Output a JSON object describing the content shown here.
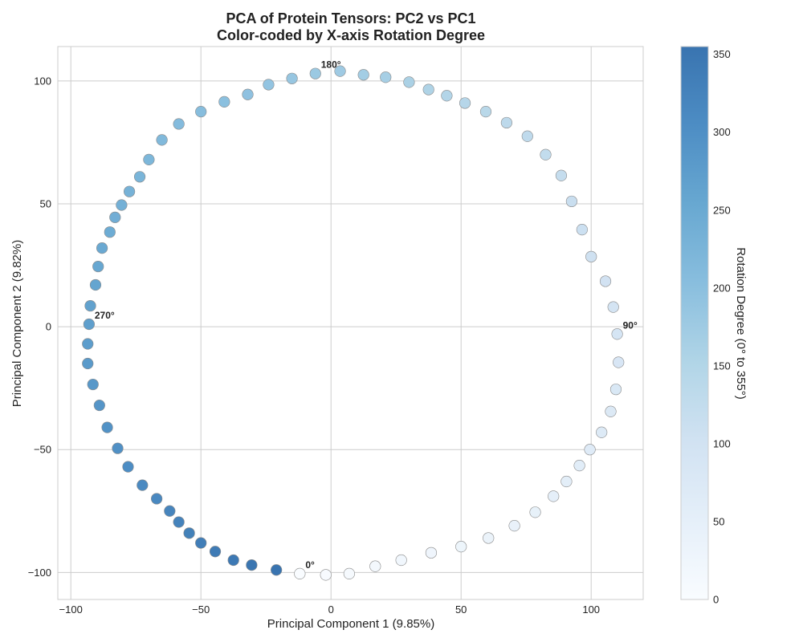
{
  "chart_data": {
    "type": "scatter",
    "title": "PCA of Protein Tensors: PC2 vs PC1",
    "subtitle": "Color-coded by X-axis Rotation Degree",
    "xlabel": "Principal Component 1 (9.85%)",
    "ylabel": "Principal Component 2 (9.82%)",
    "xlim": [
      -105,
      120
    ],
    "ylim": [
      -111,
      114
    ],
    "xticks": [
      -100,
      -50,
      0,
      50,
      100
    ],
    "yticks": [
      -100,
      -50,
      0,
      50,
      100
    ],
    "xtick_labels": [
      "−100",
      "−50",
      "0",
      "50",
      "100"
    ],
    "ytick_labels": [
      "−100",
      "−50",
      "0",
      "50",
      "100"
    ],
    "grid": true,
    "colorbar": {
      "label": "Rotation Degree (0° to 355°)",
      "range": [
        0,
        355
      ],
      "ticks": [
        0,
        50,
        100,
        150,
        200,
        250,
        300,
        350
      ],
      "tick_labels": [
        "0",
        "50",
        "100",
        "150",
        "200",
        "250",
        "300",
        "350"
      ],
      "colormap": "Blues",
      "colors": [
        "#f7fbff",
        "#deebf7",
        "#c6dbef",
        "#9ecae1",
        "#6baed6",
        "#4292c6",
        "#2171b5",
        "#08519c"
      ]
    },
    "points": [
      {
        "deg": 0,
        "x": -12,
        "y": -100.5
      },
      {
        "deg": 5,
        "x": -2,
        "y": -101
      },
      {
        "deg": 10,
        "x": 7,
        "y": -100.5
      },
      {
        "deg": 15,
        "x": 17,
        "y": -97.5
      },
      {
        "deg": 20,
        "x": 27,
        "y": -95
      },
      {
        "deg": 25,
        "x": 38.5,
        "y": -92
      },
      {
        "deg": 30,
        "x": 50,
        "y": -89.5
      },
      {
        "deg": 35,
        "x": 60.5,
        "y": -86
      },
      {
        "deg": 40,
        "x": 70.5,
        "y": -81
      },
      {
        "deg": 45,
        "x": 78.5,
        "y": -75.5
      },
      {
        "deg": 50,
        "x": 85.5,
        "y": -69
      },
      {
        "deg": 55,
        "x": 90.5,
        "y": -63
      },
      {
        "deg": 60,
        "x": 95.5,
        "y": -56.5
      },
      {
        "deg": 65,
        "x": 99.5,
        "y": -50
      },
      {
        "deg": 70,
        "x": 104,
        "y": -43
      },
      {
        "deg": 75,
        "x": 107.5,
        "y": -34.5
      },
      {
        "deg": 80,
        "x": 109.5,
        "y": -25.5
      },
      {
        "deg": 85,
        "x": 110.5,
        "y": -14.5
      },
      {
        "deg": 90,
        "x": 110,
        "y": -3
      },
      {
        "deg": 95,
        "x": 108.5,
        "y": 8
      },
      {
        "deg": 100,
        "x": 105.5,
        "y": 18.5
      },
      {
        "deg": 105,
        "x": 100,
        "y": 28.5
      },
      {
        "deg": 110,
        "x": 96.5,
        "y": 39.5
      },
      {
        "deg": 115,
        "x": 92.5,
        "y": 51
      },
      {
        "deg": 120,
        "x": 88.5,
        "y": 61.5
      },
      {
        "deg": 125,
        "x": 82.5,
        "y": 70
      },
      {
        "deg": 130,
        "x": 75.5,
        "y": 77.5
      },
      {
        "deg": 135,
        "x": 67.5,
        "y": 83
      },
      {
        "deg": 140,
        "x": 59.5,
        "y": 87.5
      },
      {
        "deg": 145,
        "x": 51.5,
        "y": 91
      },
      {
        "deg": 150,
        "x": 44.5,
        "y": 94
      },
      {
        "deg": 155,
        "x": 37.5,
        "y": 96.5
      },
      {
        "deg": 160,
        "x": 30,
        "y": 99.5
      },
      {
        "deg": 165,
        "x": 21,
        "y": 101.5
      },
      {
        "deg": 170,
        "x": 12.5,
        "y": 102.5
      },
      {
        "deg": 175,
        "x": 3.5,
        "y": 104
      },
      {
        "deg": 180,
        "x": -6,
        "y": 103
      },
      {
        "deg": 185,
        "x": -15,
        "y": 101
      },
      {
        "deg": 190,
        "x": -24,
        "y": 98.5
      },
      {
        "deg": 195,
        "x": -32,
        "y": 94.5
      },
      {
        "deg": 200,
        "x": -41,
        "y": 91.5
      },
      {
        "deg": 205,
        "x": -50,
        "y": 87.5
      },
      {
        "deg": 210,
        "x": -58.5,
        "y": 82.5
      },
      {
        "deg": 215,
        "x": -65,
        "y": 76
      },
      {
        "deg": 220,
        "x": -70,
        "y": 68
      },
      {
        "deg": 225,
        "x": -73.5,
        "y": 61
      },
      {
        "deg": 230,
        "x": -77.5,
        "y": 55
      },
      {
        "deg": 235,
        "x": -80.5,
        "y": 49.5
      },
      {
        "deg": 240,
        "x": -83,
        "y": 44.5
      },
      {
        "deg": 245,
        "x": -85,
        "y": 38.5
      },
      {
        "deg": 250,
        "x": -88,
        "y": 32
      },
      {
        "deg": 255,
        "x": -89.5,
        "y": 24.5
      },
      {
        "deg": 260,
        "x": -90.5,
        "y": 17
      },
      {
        "deg": 265,
        "x": -92.5,
        "y": 8.5
      },
      {
        "deg": 270,
        "x": -93,
        "y": 1
      },
      {
        "deg": 275,
        "x": -93.5,
        "y": -7
      },
      {
        "deg": 280,
        "x": -93.5,
        "y": -15
      },
      {
        "deg": 285,
        "x": -91.5,
        "y": -23.5
      },
      {
        "deg": 290,
        "x": -89,
        "y": -32
      },
      {
        "deg": 295,
        "x": -86,
        "y": -41
      },
      {
        "deg": 300,
        "x": -82,
        "y": -49.5
      },
      {
        "deg": 305,
        "x": -78,
        "y": -57
      },
      {
        "deg": 310,
        "x": -72.5,
        "y": -64.5
      },
      {
        "deg": 315,
        "x": -67,
        "y": -70
      },
      {
        "deg": 320,
        "x": -62,
        "y": -75
      },
      {
        "deg": 325,
        "x": -58.5,
        "y": -79.5
      },
      {
        "deg": 330,
        "x": -54.5,
        "y": -84
      },
      {
        "deg": 335,
        "x": -50,
        "y": -88
      },
      {
        "deg": 340,
        "x": -44.5,
        "y": -91.5
      },
      {
        "deg": 345,
        "x": -37.5,
        "y": -95
      },
      {
        "deg": 350,
        "x": -30.5,
        "y": -97
      },
      {
        "deg": 355,
        "x": -21,
        "y": -99
      }
    ],
    "annotations": [
      {
        "text": "0°",
        "x": -12,
        "y": -100.5
      },
      {
        "text": "90°",
        "x": 110,
        "y": -3
      },
      {
        "text": "180°",
        "x": -6,
        "y": 103
      },
      {
        "text": "270°",
        "x": -93,
        "y": 1
      }
    ]
  }
}
